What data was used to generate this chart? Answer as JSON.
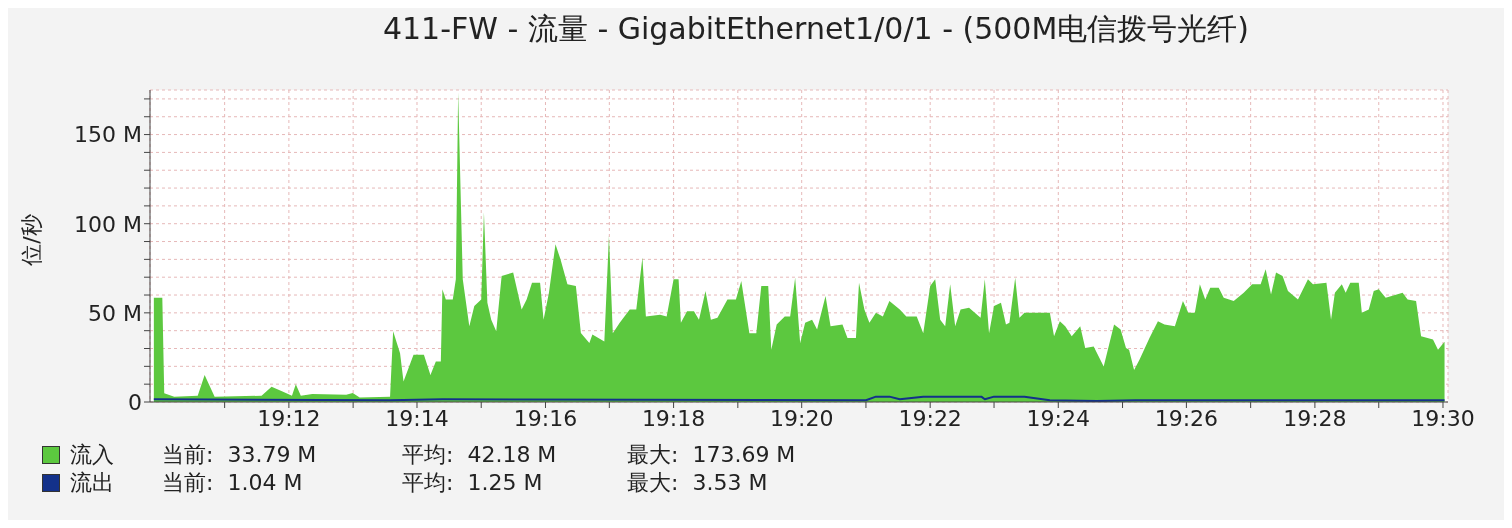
{
  "chart_data": {
    "type": "area",
    "title": "411-FW - 流量 - GigabitEthernet1/0/1 - (500M电信拨号光纤)",
    "ylabel": "位/秒",
    "xlim": [
      19.1639,
      19.5013
    ],
    "xticks": [
      {
        "value": 19.1833,
        "label": null
      },
      {
        "value": 19.2,
        "label": "19:12"
      },
      {
        "value": 19.2167,
        "label": null
      },
      {
        "value": 19.2333,
        "label": "19:14"
      },
      {
        "value": 19.25,
        "label": null
      },
      {
        "value": 19.2667,
        "label": "19:16"
      },
      {
        "value": 19.2833,
        "label": null
      },
      {
        "value": 19.3,
        "label": "19:18"
      },
      {
        "value": 19.3167,
        "label": null
      },
      {
        "value": 19.3333,
        "label": "19:20"
      },
      {
        "value": 19.35,
        "label": null
      },
      {
        "value": 19.3667,
        "label": "19:22"
      },
      {
        "value": 19.3833,
        "label": null
      },
      {
        "value": 19.4,
        "label": "19:24"
      },
      {
        "value": 19.4167,
        "label": null
      },
      {
        "value": 19.4333,
        "label": "19:26"
      },
      {
        "value": 19.45,
        "label": null
      },
      {
        "value": 19.4667,
        "label": "19:28"
      },
      {
        "value": 19.4833,
        "label": null
      },
      {
        "value": 19.5,
        "label": "19:30"
      }
    ],
    "ylim": [
      0,
      175
    ],
    "yticks": [
      0,
      {
        "value": 10,
        "label": null
      },
      {
        "value": 20,
        "label": null
      },
      {
        "value": 30,
        "label": null
      },
      {
        "value": 40,
        "label": null
      },
      {
        "value": 50,
        "label": "50 M"
      },
      {
        "value": 60,
        "label": null
      },
      {
        "value": 70,
        "label": null
      },
      {
        "value": 80,
        "label": null
      },
      {
        "value": 90,
        "label": null
      },
      {
        "value": 100,
        "label": "100 M"
      },
      {
        "value": 110,
        "label": null
      },
      {
        "value": 120,
        "label": null
      },
      {
        "value": 130,
        "label": null
      },
      {
        "value": 140,
        "label": null
      },
      {
        "value": 150,
        "label": "150 M"
      },
      {
        "value": 160,
        "label": null
      },
      {
        "value": 170,
        "label": null
      }
    ],
    "grid": true,
    "legend": "bottom",
    "annotations": [
      "当前:  33.79 M",
      "平均:  42.18 M",
      "最大:  173.69 M",
      "当前:  1.04 M",
      "平均:  1.25 M",
      "最大:  3.53 M"
    ],
    "series": [
      {
        "name": "流入",
        "color": "#5cc83f",
        "x": [
          19.1649,
          19.1671,
          19.1676,
          19.1702,
          19.1763,
          19.1781,
          19.1807,
          19.1929,
          19.1955,
          19.1982,
          19.2008,
          19.2018,
          19.2031,
          19.2061,
          19.2149,
          19.2166,
          19.2184,
          19.2263,
          19.2271,
          19.2289,
          19.2298,
          19.2324,
          19.2351,
          19.2368,
          19.2382,
          19.2395,
          19.2399,
          19.2408,
          19.2426,
          19.2434,
          19.244,
          19.2452,
          19.2469,
          19.2482,
          19.25,
          19.2507,
          19.2516,
          19.2526,
          19.2539,
          19.2553,
          19.2583,
          19.2605,
          19.2618,
          19.2632,
          19.2653,
          19.2662,
          19.2676,
          19.2693,
          19.2706,
          19.2724,
          19.2746,
          19.2759,
          19.2781,
          19.2789,
          19.282,
          19.2832,
          19.2842,
          19.286,
          19.2886,
          19.2903,
          19.2919,
          19.2928,
          19.2965,
          19.2982,
          19.3,
          19.3013,
          19.3019,
          19.3035,
          19.3053,
          19.3066,
          19.3083,
          19.3097,
          19.3114,
          19.314,
          19.3162,
          19.3176,
          19.3197,
          19.3215,
          19.3228,
          19.3246,
          19.3254,
          19.3268,
          19.3289,
          19.3303,
          19.3316,
          19.3329,
          19.3342,
          19.336,
          19.3373,
          19.3395,
          19.3408,
          19.3439,
          19.3452,
          19.3474,
          19.3482,
          19.3496,
          19.3509,
          19.3526,
          19.3544,
          19.3561,
          19.3588,
          19.3605,
          19.3632,
          19.3649,
          19.3667,
          19.368,
          19.3693,
          19.3706,
          19.3719,
          19.3732,
          19.3746,
          19.3768,
          19.3798,
          19.3809,
          19.382,
          19.3833,
          19.3851,
          19.3864,
          19.3873,
          19.3888,
          19.3899,
          19.3912,
          19.3978,
          19.3989,
          19.4004,
          19.4018,
          19.4035,
          19.4057,
          19.407,
          19.4092,
          19.4118,
          19.4145,
          19.4162,
          19.4176,
          19.4184,
          19.4197,
          19.4211,
          19.4237,
          19.4259,
          19.4276,
          19.4303,
          19.4324,
          19.4338,
          19.4355,
          19.4368,
          19.4382,
          19.4395,
          19.4417,
          19.443,
          19.4456,
          19.4482,
          19.4504,
          19.4526,
          19.4539,
          19.4553,
          19.4566,
          19.4583,
          19.4597,
          19.4623,
          19.4649,
          19.4662,
          19.4697,
          19.4709,
          19.4719,
          19.4737,
          19.4747,
          19.4759,
          19.4781,
          19.4789,
          19.4807,
          19.482,
          19.4833,
          19.4851,
          19.4895,
          19.4908,
          19.493,
          19.4943,
          19.4974,
          19.4987,
          19.5004
        ],
        "values": [
          58.5,
          58.5,
          4.9,
          3,
          3.5,
          15.2,
          3,
          3.5,
          8.6,
          6,
          3.5,
          10,
          3.5,
          4.5,
          4,
          5,
          2.5,
          3,
          39.7,
          27.4,
          11.5,
          26.5,
          26.5,
          15.2,
          22.7,
          22.7,
          63.2,
          57.5,
          57.5,
          68.8,
          173.7,
          68.8,
          42.5,
          53.8,
          57.5,
          106.4,
          55.6,
          46.2,
          39.7,
          70.7,
          72.6,
          51.9,
          57.5,
          66.9,
          66.9,
          46.2,
          61.3,
          88.5,
          80,
          66,
          65,
          38.7,
          33.1,
          37.8,
          34,
          93.2,
          38.5,
          44.4,
          51.9,
          51.9,
          81,
          48,
          49,
          48,
          68.8,
          68.8,
          44.4,
          50.9,
          50.9,
          46.2,
          62.2,
          46.2,
          47.2,
          57.5,
          57.5,
          67.9,
          38.5,
          38.5,
          65,
          65,
          29.3,
          43.4,
          48,
          48,
          69.7,
          33.1,
          44.4,
          46.2,
          40.6,
          59.4,
          42.5,
          43.4,
          35.9,
          35.9,
          66.9,
          51.9,
          44.4,
          50,
          48,
          56.6,
          51.9,
          48,
          48,
          38.5,
          65,
          68.8,
          46.2,
          42.5,
          66,
          42.5,
          51.9,
          52.8,
          47.2,
          68.8,
          38.5,
          53.8,
          55.6,
          43.4,
          44.4,
          69.7,
          47.2,
          50,
          50,
          36.9,
          45.3,
          42.5,
          36.9,
          42.5,
          30.3,
          31.2,
          19.9,
          43.4,
          40.6,
          30.3,
          29.3,
          18,
          23.7,
          35.9,
          45.3,
          43.4,
          42.5,
          56.6,
          50,
          50,
          66,
          57.5,
          64.1,
          64.1,
          58.5,
          56.6,
          61.3,
          66,
          66,
          74.4,
          60.3,
          72.6,
          70.7,
          62.2,
          57.5,
          68.8,
          66,
          66.9,
          46.2,
          61.3,
          66,
          61.3,
          66.9,
          66.9,
          50,
          51.9,
          62.2,
          63.2,
          58.5,
          61.3,
          57.5,
          56.6,
          36.9,
          35,
          29.3,
          33.8
        ]
      },
      {
        "name": "流出",
        "type": "line",
        "color": "#13318a",
        "x": [
          19.1649,
          19.2263,
          19.24,
          19.35,
          19.3526,
          19.3561,
          19.3588,
          19.3649,
          19.38,
          19.3809,
          19.3833,
          19.3912,
          19.3978,
          19.41,
          19.42,
          19.5004
        ],
        "values": [
          1.5,
          1,
          1.5,
          1,
          3,
          3,
          1.5,
          3,
          3,
          1.5,
          3,
          3,
          1,
          0.5,
          1,
          1
        ]
      }
    ]
  }
}
